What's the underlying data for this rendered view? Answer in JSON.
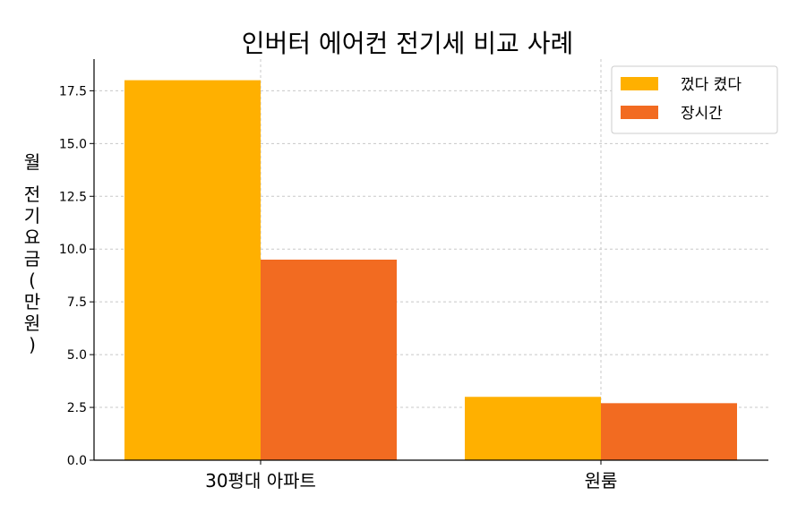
{
  "chart_data": {
    "type": "bar",
    "title": "인버터 에어컨 전기세 비교 사례",
    "ylabel": "월 전기요금(만원)",
    "xlabel": "",
    "categories": [
      "30평대 아파트",
      "원룸"
    ],
    "series": [
      {
        "name": "껐다 켰다",
        "values": [
          18.0,
          3.0
        ],
        "color": "#FFB000"
      },
      {
        "name": "장시간",
        "values": [
          9.5,
          2.7
        ],
        "color": "#F26B21"
      }
    ],
    "ylim": [
      0,
      19
    ],
    "yticks": [
      "0.0",
      "2.5",
      "5.0",
      "7.5",
      "10.0",
      "12.5",
      "15.0",
      "17.5"
    ],
    "grid": true,
    "legend_position": "top-right"
  }
}
